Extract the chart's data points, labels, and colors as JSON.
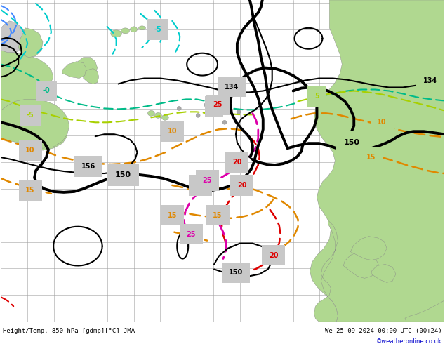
{
  "title_bottom": "Height/Temp. 850 hPa [gdmp][°C] JMA",
  "title_right": "We 25-09-2024 00:00 UTC (00+24)",
  "copyright": "©weatheronline.co.uk",
  "bg_color": "#c8c8c8",
  "land_color": "#b0d890",
  "ocean_color": "#c8c8c8",
  "grid_color": "#a0a0a0",
  "figsize": [
    6.34,
    4.9
  ],
  "dpi": 100,
  "xlim": [
    0,
    634
  ],
  "ylim": [
    0,
    460
  ],
  "bottom_bar_height": 30
}
